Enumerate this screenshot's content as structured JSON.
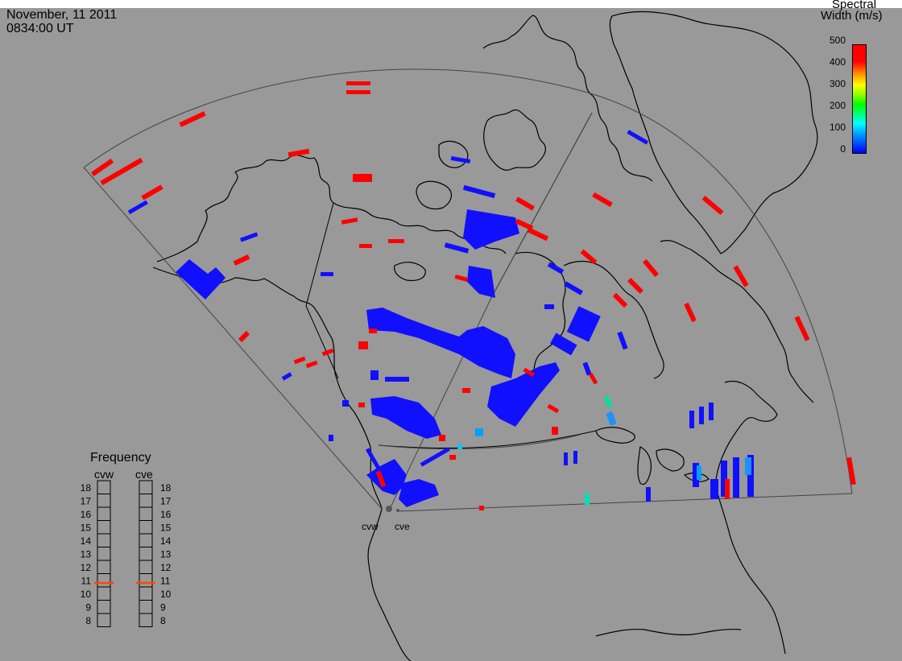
{
  "header": {
    "date": "November, 11 2011",
    "time": "0834:00 UT"
  },
  "colorbar": {
    "title_line1": "Spectral",
    "title_line2": "Width (m/s)",
    "ticks": [
      "500",
      "400",
      "300",
      "200",
      "100",
      "0"
    ],
    "scale_min": 0,
    "scale_max": 500
  },
  "frequency_panel": {
    "title": "Frequency",
    "radars": [
      "cvw",
      "cve"
    ],
    "scale": [
      "18",
      "17",
      "16",
      "15",
      "14",
      "13",
      "12",
      "11",
      "10",
      "9",
      "8"
    ],
    "current_mhz": {
      "cvw": 10.8,
      "cve": 10.8
    },
    "marker_color": "#ff4500"
  },
  "sites": {
    "west": "cvw",
    "east": "cve"
  },
  "colors": {
    "background": "#999999",
    "low_width": "#1010ff",
    "high_width": "#ff0000",
    "mid_width": "#00c8ff",
    "teal": "#00e0c0"
  }
}
